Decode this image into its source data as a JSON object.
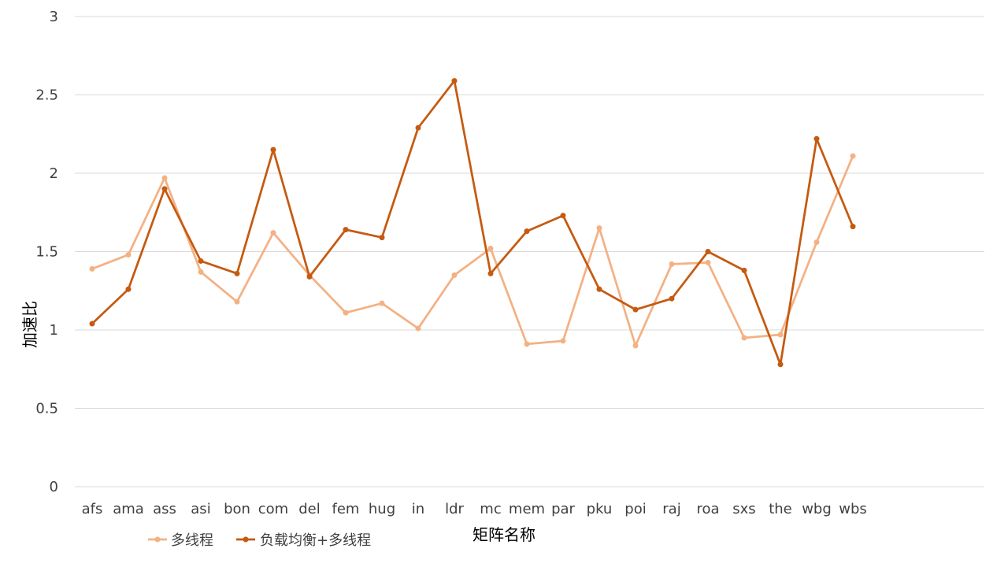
{
  "chart_data": {
    "type": "line",
    "xlabel": "矩阵名称",
    "ylabel": "加速比",
    "ylim": [
      0,
      3
    ],
    "yticks": [
      "0",
      "0.5",
      "1",
      "1.5",
      "2",
      "2.5",
      "3"
    ],
    "grid": true,
    "legend_position": "bottom-left",
    "categories": [
      "afs",
      "ama",
      "ass",
      "asi",
      "bon",
      "com",
      "del",
      "fem",
      "hug",
      "in",
      "ldr",
      "mc",
      "mem",
      "par",
      "pku",
      "poi",
      "raj",
      "roa",
      "sxs",
      "the",
      "wbg",
      "wbs"
    ],
    "series": [
      {
        "name": "多线程",
        "color": "#F4B183",
        "values": [
          1.39,
          1.48,
          1.97,
          1.37,
          1.18,
          1.62,
          1.35,
          1.11,
          1.17,
          1.01,
          1.35,
          1.52,
          0.91,
          0.93,
          1.65,
          0.9,
          1.42,
          1.43,
          0.95,
          0.97,
          1.56,
          2.11
        ]
      },
      {
        "name": "负载均衡+多线程",
        "color": "#C55A11",
        "values": [
          1.04,
          1.26,
          1.9,
          1.44,
          1.36,
          2.15,
          1.34,
          1.64,
          1.59,
          2.29,
          2.59,
          1.36,
          1.63,
          1.73,
          1.26,
          1.13,
          1.2,
          1.5,
          1.38,
          0.78,
          2.22,
          1.66
        ]
      }
    ]
  }
}
